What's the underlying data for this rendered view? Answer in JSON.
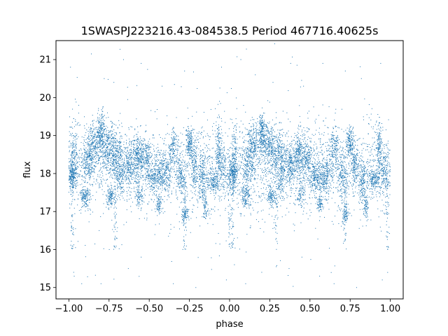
{
  "chart_data": {
    "type": "scatter",
    "title": "1SWASPJ223216.43-084538.5 Period 467716.40625s",
    "xlabel": "phase",
    "ylabel": "flux",
    "xlim": [
      -1.08,
      1.08
    ],
    "ylim": [
      14.7,
      21.5
    ],
    "xticks": [
      -1.0,
      -0.75,
      -0.5,
      -0.25,
      0.0,
      0.25,
      0.5,
      0.75,
      1.0
    ],
    "xtick_labels": [
      "−1.00",
      "−0.75",
      "−0.50",
      "−0.25",
      "0.00",
      "0.25",
      "0.50",
      "0.75",
      "1.00"
    ],
    "yticks": [
      15,
      16,
      17,
      18,
      19,
      20,
      21
    ],
    "ytick_labels": [
      "15",
      "16",
      "17",
      "18",
      "19",
      "20",
      "21"
    ],
    "grid": false,
    "point_color": "#1f77b4",
    "x_range": [
      -1.0,
      1.0
    ],
    "period_phase": 1.0,
    "baseline": 18.0,
    "clumps": [
      {
        "x": -0.98,
        "y": 18.0,
        "sx": 0.015,
        "sy": 0.2,
        "n": 260
      },
      {
        "x": -0.97,
        "y": 18.7,
        "sx": 0.012,
        "sy": 0.35,
        "n": 90
      },
      {
        "x": -0.9,
        "y": 17.4,
        "sx": 0.015,
        "sy": 0.15,
        "n": 140
      },
      {
        "x": -0.88,
        "y": 18.3,
        "sx": 0.02,
        "sy": 0.25,
        "n": 200
      },
      {
        "x": -0.85,
        "y": 18.8,
        "sx": 0.02,
        "sy": 0.25,
        "n": 200
      },
      {
        "x": -0.8,
        "y": 19.1,
        "sx": 0.012,
        "sy": 0.25,
        "n": 180
      },
      {
        "x": -0.76,
        "y": 18.7,
        "sx": 0.025,
        "sy": 0.3,
        "n": 260
      },
      {
        "x": -0.74,
        "y": 17.4,
        "sx": 0.012,
        "sy": 0.12,
        "n": 110
      },
      {
        "x": -0.7,
        "y": 18.5,
        "sx": 0.025,
        "sy": 0.3,
        "n": 240
      },
      {
        "x": -0.68,
        "y": 17.9,
        "sx": 0.015,
        "sy": 0.3,
        "n": 120
      },
      {
        "x": -0.62,
        "y": 18.2,
        "sx": 0.02,
        "sy": 0.25,
        "n": 200
      },
      {
        "x": -0.57,
        "y": 18.5,
        "sx": 0.015,
        "sy": 0.3,
        "n": 200
      },
      {
        "x": -0.56,
        "y": 17.4,
        "sx": 0.012,
        "sy": 0.2,
        "n": 80
      },
      {
        "x": -0.52,
        "y": 18.4,
        "sx": 0.02,
        "sy": 0.25,
        "n": 180
      },
      {
        "x": -0.46,
        "y": 17.9,
        "sx": 0.025,
        "sy": 0.2,
        "n": 220
      },
      {
        "x": -0.44,
        "y": 17.2,
        "sx": 0.008,
        "sy": 0.12,
        "n": 70
      },
      {
        "x": -0.4,
        "y": 18.0,
        "sx": 0.02,
        "sy": 0.25,
        "n": 180
      },
      {
        "x": -0.35,
        "y": 18.7,
        "sx": 0.015,
        "sy": 0.25,
        "n": 120
      },
      {
        "x": -0.3,
        "y": 17.9,
        "sx": 0.015,
        "sy": 0.3,
        "n": 140
      },
      {
        "x": -0.28,
        "y": 16.9,
        "sx": 0.012,
        "sy": 0.12,
        "n": 80
      },
      {
        "x": -0.25,
        "y": 18.8,
        "sx": 0.012,
        "sy": 0.2,
        "n": 160
      },
      {
        "x": -0.22,
        "y": 18.2,
        "sx": 0.012,
        "sy": 0.3,
        "n": 140
      },
      {
        "x": -0.17,
        "y": 17.8,
        "sx": 0.015,
        "sy": 0.35,
        "n": 160
      },
      {
        "x": -0.15,
        "y": 17.1,
        "sx": 0.008,
        "sy": 0.15,
        "n": 60
      },
      {
        "x": -0.1,
        "y": 17.8,
        "sx": 0.02,
        "sy": 0.15,
        "n": 160
      },
      {
        "x": -0.07,
        "y": 18.6,
        "sx": 0.01,
        "sy": 0.4,
        "n": 140
      },
      {
        "x": -0.04,
        "y": 18.1,
        "sx": 0.015,
        "sy": 0.3,
        "n": 120
      },
      {
        "x": 0.02,
        "y": 18.0,
        "sx": 0.015,
        "sy": 0.2,
        "n": 260
      },
      {
        "x": 0.03,
        "y": 18.7,
        "sx": 0.012,
        "sy": 0.35,
        "n": 90
      },
      {
        "x": 0.1,
        "y": 17.4,
        "sx": 0.015,
        "sy": 0.15,
        "n": 140
      },
      {
        "x": 0.12,
        "y": 18.3,
        "sx": 0.02,
        "sy": 0.25,
        "n": 200
      },
      {
        "x": 0.15,
        "y": 18.8,
        "sx": 0.02,
        "sy": 0.25,
        "n": 200
      },
      {
        "x": 0.2,
        "y": 19.1,
        "sx": 0.012,
        "sy": 0.25,
        "n": 180
      },
      {
        "x": 0.24,
        "y": 18.7,
        "sx": 0.025,
        "sy": 0.3,
        "n": 260
      },
      {
        "x": 0.26,
        "y": 17.4,
        "sx": 0.012,
        "sy": 0.12,
        "n": 110
      },
      {
        "x": 0.3,
        "y": 18.5,
        "sx": 0.025,
        "sy": 0.3,
        "n": 240
      },
      {
        "x": 0.32,
        "y": 17.9,
        "sx": 0.015,
        "sy": 0.3,
        "n": 120
      },
      {
        "x": 0.38,
        "y": 18.2,
        "sx": 0.02,
        "sy": 0.25,
        "n": 200
      },
      {
        "x": 0.43,
        "y": 18.5,
        "sx": 0.015,
        "sy": 0.3,
        "n": 200
      },
      {
        "x": 0.44,
        "y": 17.4,
        "sx": 0.012,
        "sy": 0.2,
        "n": 80
      },
      {
        "x": 0.48,
        "y": 18.4,
        "sx": 0.02,
        "sy": 0.25,
        "n": 180
      },
      {
        "x": 0.54,
        "y": 17.9,
        "sx": 0.025,
        "sy": 0.2,
        "n": 220
      },
      {
        "x": 0.56,
        "y": 17.2,
        "sx": 0.008,
        "sy": 0.12,
        "n": 70
      },
      {
        "x": 0.6,
        "y": 18.0,
        "sx": 0.02,
        "sy": 0.25,
        "n": 180
      },
      {
        "x": 0.65,
        "y": 18.7,
        "sx": 0.015,
        "sy": 0.25,
        "n": 120
      },
      {
        "x": 0.7,
        "y": 17.9,
        "sx": 0.015,
        "sy": 0.3,
        "n": 140
      },
      {
        "x": 0.72,
        "y": 16.9,
        "sx": 0.012,
        "sy": 0.12,
        "n": 80
      },
      {
        "x": 0.75,
        "y": 18.8,
        "sx": 0.012,
        "sy": 0.2,
        "n": 160
      },
      {
        "x": 0.78,
        "y": 18.2,
        "sx": 0.012,
        "sy": 0.3,
        "n": 140
      },
      {
        "x": 0.83,
        "y": 17.8,
        "sx": 0.015,
        "sy": 0.35,
        "n": 160
      },
      {
        "x": 0.85,
        "y": 17.1,
        "sx": 0.008,
        "sy": 0.15,
        "n": 60
      },
      {
        "x": 0.9,
        "y": 17.8,
        "sx": 0.02,
        "sy": 0.15,
        "n": 160
      },
      {
        "x": 0.93,
        "y": 18.6,
        "sx": 0.01,
        "sy": 0.4,
        "n": 140
      },
      {
        "x": 0.96,
        "y": 18.1,
        "sx": 0.015,
        "sy": 0.3,
        "n": 120
      }
    ],
    "outliers": [
      {
        "x": -0.86,
        "y": 21.15
      },
      {
        "x": -0.78,
        "y": 20.5
      },
      {
        "x": -0.72,
        "y": 20.4
      },
      {
        "x": -0.66,
        "y": 21.0
      },
      {
        "x": -0.55,
        "y": 20.9
      },
      {
        "x": -0.42,
        "y": 20.3
      },
      {
        "x": -0.28,
        "y": 20.7
      },
      {
        "x": -0.05,
        "y": 20.8
      },
      {
        "x": 0.07,
        "y": 21.0
      },
      {
        "x": 0.16,
        "y": 20.6
      },
      {
        "x": 0.27,
        "y": 20.4
      },
      {
        "x": 0.38,
        "y": 20.9
      },
      {
        "x": 0.46,
        "y": 20.3
      },
      {
        "x": 0.58,
        "y": 20.9
      },
      {
        "x": 0.72,
        "y": 20.7
      },
      {
        "x": 0.82,
        "y": 20.5
      },
      {
        "x": 0.94,
        "y": 20.9
      },
      {
        "x": -0.99,
        "y": 20.8
      },
      {
        "x": -0.92,
        "y": 15.1
      },
      {
        "x": -0.8,
        "y": 15.1
      },
      {
        "x": -0.63,
        "y": 15.5
      },
      {
        "x": -0.35,
        "y": 15.1
      },
      {
        "x": -0.21,
        "y": 15.0
      },
      {
        "x": -0.02,
        "y": 15.2
      },
      {
        "x": 0.1,
        "y": 15.1
      },
      {
        "x": 0.2,
        "y": 15.4
      },
      {
        "x": 0.37,
        "y": 15.5
      },
      {
        "x": 0.56,
        "y": 15.3
      },
      {
        "x": 0.65,
        "y": 15.1
      },
      {
        "x": 0.79,
        "y": 15.0
      },
      {
        "x": 0.95,
        "y": 15.2
      },
      {
        "x": -0.55,
        "y": 15.8
      },
      {
        "x": 0.45,
        "y": 15.8
      },
      {
        "x": -0.97,
        "y": 15.4
      },
      {
        "x": 0.03,
        "y": 15.6
      }
    ]
  }
}
